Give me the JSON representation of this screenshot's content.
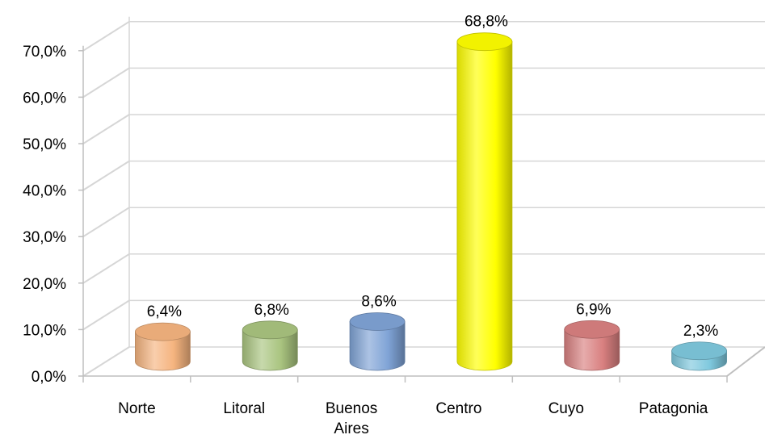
{
  "chart_data": {
    "type": "bar",
    "categories": [
      "Norte",
      "Litoral",
      "Buenos Aires",
      "Centro",
      "Cuyo",
      "Patagonia"
    ],
    "category_lines": [
      [
        "Norte"
      ],
      [
        "Litoral"
      ],
      [
        "Buenos",
        "Aires"
      ],
      [
        "Centro"
      ],
      [
        "Cuyo"
      ],
      [
        "Patagonia"
      ]
    ],
    "values": [
      6.4,
      6.8,
      8.6,
      68.8,
      6.9,
      2.3
    ],
    "data_labels": [
      "6,4%",
      "6,8%",
      "8,6%",
      "68,8%",
      "6,9%",
      "2,3%"
    ],
    "y_ticks": [
      0,
      10,
      20,
      30,
      40,
      50,
      60,
      70
    ],
    "y_tick_labels": [
      "0,0%",
      "10,0%",
      "20,0%",
      "30,0%",
      "40,0%",
      "50,0%",
      "60,0%",
      "70,0%"
    ],
    "ylim": [
      0,
      70
    ],
    "grid": true,
    "style": "3d-cylinder",
    "colors": [
      "#f5b47f",
      "#a9c47f",
      "#7fa3d6",
      "#ffff00",
      "#d98080",
      "#7ec8dd"
    ],
    "title": "",
    "xlabel": "",
    "ylabel": ""
  }
}
